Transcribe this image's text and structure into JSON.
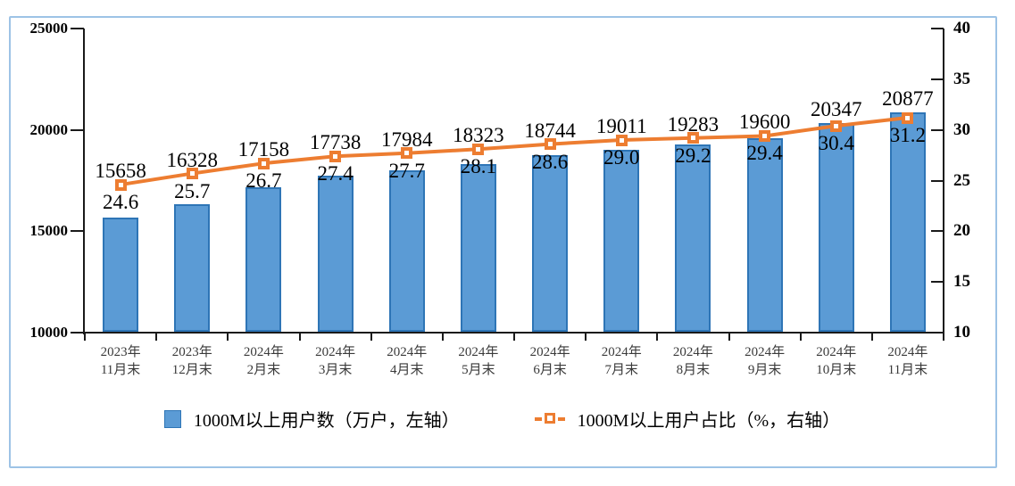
{
  "chart_data": {
    "type": "combo-bar-line",
    "title": "",
    "categories": [
      "2023年\n11月末",
      "2023年\n12月末",
      "2024年\n2月末",
      "2024年\n3月末",
      "2024年\n4月末",
      "2024年\n5月末",
      "2024年\n6月末",
      "2024年\n7月末",
      "2024年\n8月末",
      "2024年\n9月末",
      "2024年\n10月末",
      "2024年\n11月末"
    ],
    "series": [
      {
        "name": "1000M以上用户数（万户，左轴）",
        "type": "bar",
        "axis": "left",
        "color": "#5B9BD5",
        "border_color": "#2E75B6",
        "values": [
          15658,
          16328,
          17158,
          17738,
          17984,
          18323,
          18744,
          19011,
          19283,
          19600,
          20347,
          20877
        ]
      },
      {
        "name": "1000M以上用户占比（%，右轴）",
        "type": "line",
        "axis": "right",
        "color": "#ED7D31",
        "marker": "open-square",
        "values": [
          24.6,
          25.7,
          26.7,
          27.4,
          27.7,
          28.1,
          28.6,
          29.0,
          29.2,
          29.4,
          30.4,
          31.2
        ]
      }
    ],
    "left_axis": {
      "min": 10000,
      "max": 25000,
      "ticks": [
        "10000",
        "15000",
        "20000",
        "25000"
      ]
    },
    "right_axis": {
      "min": 10,
      "max": 40,
      "ticks": [
        "10",
        "15",
        "20",
        "25",
        "30",
        "35",
        "40"
      ]
    },
    "grid": false,
    "legend_position": "bottom",
    "frame_color": "#9DC3E6",
    "axis_color": "#1a1a1a"
  }
}
